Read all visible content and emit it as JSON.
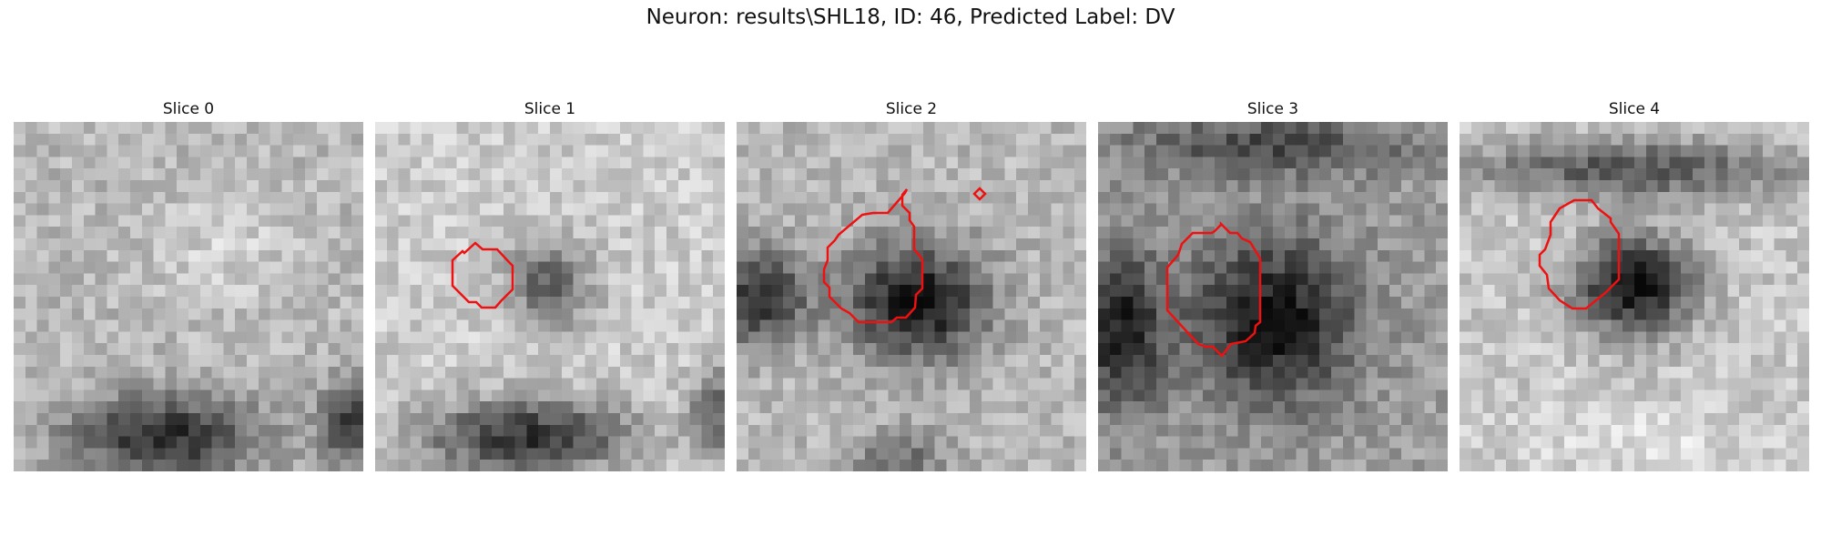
{
  "figure": {
    "title": "Neuron: results\\SHL18, ID: 46, Predicted Label: DV",
    "outline_color": "#ee1111",
    "panels": [
      {
        "title": "Slice 0",
        "has_outline": false
      },
      {
        "title": "Slice 1",
        "has_outline": true
      },
      {
        "title": "Slice 2",
        "has_outline": true
      },
      {
        "title": "Slice 3",
        "has_outline": true
      },
      {
        "title": "Slice 4",
        "has_outline": true
      }
    ]
  }
}
